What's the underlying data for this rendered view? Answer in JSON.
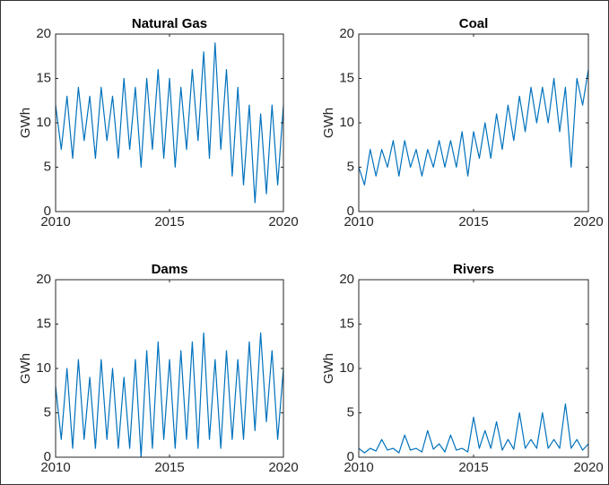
{
  "chart_data": [
    {
      "type": "line",
      "title": "Natural Gas",
      "ylabel": "GWh",
      "color": "#0072bd",
      "xlim": [
        2010,
        2020
      ],
      "xticks": [
        2010,
        2015,
        2020
      ],
      "ylim": [
        0,
        20
      ],
      "yticks": [
        0,
        5,
        10,
        15,
        20
      ],
      "x": [
        2010,
        2010.25,
        2010.5,
        2010.75,
        2011,
        2011.25,
        2011.5,
        2011.75,
        2012,
        2012.25,
        2012.5,
        2012.75,
        2013,
        2013.25,
        2013.5,
        2013.75,
        2014,
        2014.25,
        2014.5,
        2014.75,
        2015,
        2015.25,
        2015.5,
        2015.75,
        2016,
        2016.25,
        2016.5,
        2016.75,
        2017,
        2017.25,
        2017.5,
        2017.75,
        2018,
        2018.25,
        2018.5,
        2018.75,
        2019,
        2019.25,
        2019.5,
        2019.75,
        2020
      ],
      "values": [
        12,
        7,
        13,
        6,
        14,
        8,
        13,
        6,
        14,
        8,
        13,
        6,
        15,
        7,
        14,
        5,
        15,
        7,
        16,
        6,
        15,
        5,
        14,
        7,
        16,
        8,
        18,
        6,
        19,
        7,
        16,
        4,
        14,
        3,
        12,
        1,
        11,
        2,
        12,
        3,
        12
      ]
    },
    {
      "type": "line",
      "title": "Coal",
      "ylabel": "GWh",
      "color": "#0072bd",
      "xlim": [
        2010,
        2020
      ],
      "xticks": [
        2010,
        2015,
        2020
      ],
      "ylim": [
        0,
        20
      ],
      "yticks": [
        0,
        5,
        10,
        15,
        20
      ],
      "x": [
        2010,
        2010.25,
        2010.5,
        2010.75,
        2011,
        2011.25,
        2011.5,
        2011.75,
        2012,
        2012.25,
        2012.5,
        2012.75,
        2013,
        2013.25,
        2013.5,
        2013.75,
        2014,
        2014.25,
        2014.5,
        2014.75,
        2015,
        2015.25,
        2015.5,
        2015.75,
        2016,
        2016.25,
        2016.5,
        2016.75,
        2017,
        2017.25,
        2017.5,
        2017.75,
        2018,
        2018.25,
        2018.5,
        2018.75,
        2019,
        2019.25,
        2019.5,
        2019.75,
        2020
      ],
      "values": [
        5,
        3,
        7,
        4,
        7,
        5,
        8,
        4,
        8,
        5,
        7,
        4,
        7,
        5,
        8,
        5,
        8,
        5,
        9,
        4,
        9,
        6,
        10,
        6,
        11,
        7,
        12,
        8,
        13,
        9,
        14,
        10,
        14,
        10,
        15,
        9,
        14,
        5,
        15,
        12,
        16
      ]
    },
    {
      "type": "line",
      "title": "Dams",
      "ylabel": "GWh",
      "color": "#0072bd",
      "xlim": [
        2010,
        2020
      ],
      "xticks": [
        2010,
        2015,
        2020
      ],
      "ylim": [
        0,
        20
      ],
      "yticks": [
        0,
        5,
        10,
        15,
        20
      ],
      "x": [
        2010,
        2010.25,
        2010.5,
        2010.75,
        2011,
        2011.25,
        2011.5,
        2011.75,
        2012,
        2012.25,
        2012.5,
        2012.75,
        2013,
        2013.25,
        2013.5,
        2013.75,
        2014,
        2014.25,
        2014.5,
        2014.75,
        2015,
        2015.25,
        2015.5,
        2015.75,
        2016,
        2016.25,
        2016.5,
        2016.75,
        2017,
        2017.25,
        2017.5,
        2017.75,
        2018,
        2018.25,
        2018.5,
        2018.75,
        2019,
        2019.25,
        2019.5,
        2019.75,
        2020
      ],
      "values": [
        8,
        2,
        10,
        1,
        11,
        2,
        9,
        1,
        11,
        2,
        10,
        1,
        9,
        1,
        11,
        0,
        12,
        1,
        13,
        2,
        11,
        1,
        12,
        2,
        13,
        1,
        14,
        2,
        11,
        1,
        12,
        2,
        11,
        2,
        13,
        3,
        14,
        4,
        12,
        2,
        10
      ]
    },
    {
      "type": "line",
      "title": "Rivers",
      "ylabel": "GWh",
      "color": "#0072bd",
      "xlim": [
        2010,
        2020
      ],
      "xticks": [
        2010,
        2015,
        2020
      ],
      "ylim": [
        0,
        20
      ],
      "yticks": [
        0,
        5,
        10,
        15,
        20
      ],
      "x": [
        2010,
        2010.25,
        2010.5,
        2010.75,
        2011,
        2011.25,
        2011.5,
        2011.75,
        2012,
        2012.25,
        2012.5,
        2012.75,
        2013,
        2013.25,
        2013.5,
        2013.75,
        2014,
        2014.25,
        2014.5,
        2014.75,
        2015,
        2015.25,
        2015.5,
        2015.75,
        2016,
        2016.25,
        2016.5,
        2016.75,
        2017,
        2017.25,
        2017.5,
        2017.75,
        2018,
        2018.25,
        2018.5,
        2018.75,
        2019,
        2019.25,
        2019.5,
        2019.75,
        2020
      ],
      "values": [
        1,
        0.5,
        1,
        0.7,
        2,
        0.8,
        1,
        0.5,
        2.5,
        0.8,
        1,
        0.6,
        3,
        0.9,
        1.5,
        0.6,
        2.5,
        0.8,
        1,
        0.6,
        4.5,
        1,
        3,
        1,
        4,
        0.8,
        2,
        0.9,
        5,
        1,
        2,
        1,
        5,
        1,
        2,
        1,
        6,
        1,
        2,
        0.8,
        1.5
      ]
    }
  ]
}
